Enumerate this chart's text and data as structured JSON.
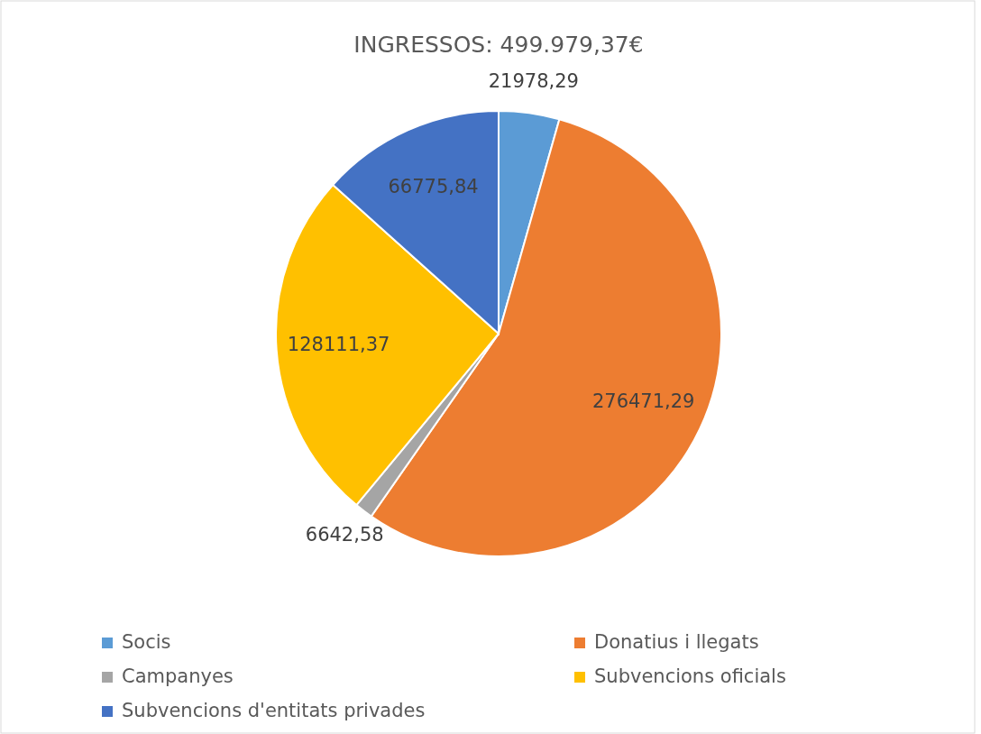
{
  "chart_data": {
    "type": "pie",
    "title": "INGRESSOS: 499.979,37€",
    "categories": [
      "Socis",
      "Donatius i llegats",
      "Campanyes",
      "Subvencions oficials",
      "Subvencions d'entitats privades"
    ],
    "values": [
      21978.29,
      276471.29,
      6642.58,
      128111.37,
      66775.84
    ],
    "value_labels": [
      "21978,29",
      "276471,29",
      "6642,58",
      "128111,37",
      "66775,84"
    ],
    "colors": [
      "#5b9bd5",
      "#ed7d31",
      "#a5a5a5",
      "#ffc000",
      "#4472c4"
    ],
    "legend": "bottom"
  }
}
